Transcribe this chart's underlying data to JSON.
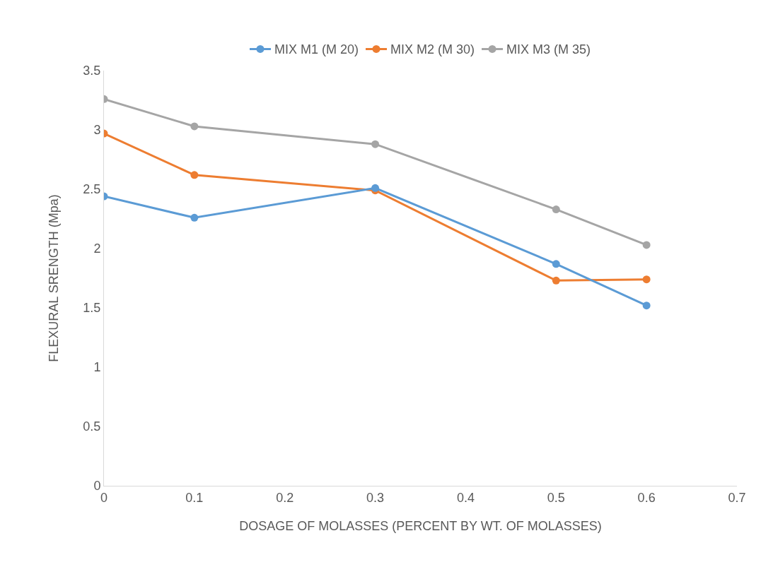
{
  "chart_data": {
    "type": "line",
    "xlabel": "DOSAGE OF MOLASSES (PERCENT BY WT. OF MOLASSES)",
    "ylabel": "FLEXURAL SRENGTH (Mpa)",
    "x": [
      0,
      0.1,
      0.3,
      0.5,
      0.6
    ],
    "series": [
      {
        "name": "MIX M1 (M 20)",
        "color": "#5b9bd5",
        "values": [
          2.44,
          2.26,
          2.51,
          1.87,
          1.52
        ]
      },
      {
        "name": "MIX M2 (M 30)",
        "color": "#ed7d31",
        "values": [
          2.97,
          2.62,
          2.49,
          1.73,
          1.74
        ]
      },
      {
        "name": "MIX M3 (M 35)",
        "color": "#a5a5a5",
        "values": [
          3.26,
          3.03,
          2.88,
          2.33,
          2.03
        ]
      }
    ],
    "xlim": [
      0,
      0.7
    ],
    "xticks": [
      0,
      0.1,
      0.2,
      0.3,
      0.4,
      0.5,
      0.6,
      0.7
    ],
    "ylim": [
      0,
      3.5
    ],
    "yticks": [
      0,
      0.5,
      1,
      1.5,
      2,
      2.5,
      3,
      3.5
    ],
    "grid": false,
    "legend": "top",
    "marker": "circle",
    "line_style": "solid"
  }
}
